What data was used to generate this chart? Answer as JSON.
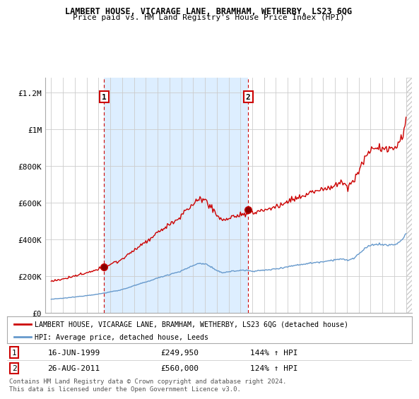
{
  "title": "LAMBERT HOUSE, VICARAGE LANE, BRAMHAM, WETHERBY, LS23 6QG",
  "subtitle": "Price paid vs. HM Land Registry's House Price Index (HPI)",
  "legend_line1": "LAMBERT HOUSE, VICARAGE LANE, BRAMHAM, WETHERBY, LS23 6QG (detached house)",
  "legend_line2": "HPI: Average price, detached house, Leeds",
  "footnote": "Contains HM Land Registry data © Crown copyright and database right 2024.\nThis data is licensed under the Open Government Licence v3.0.",
  "sale1_label": "1",
  "sale1_date": "16-JUN-1999",
  "sale1_price": "£249,950",
  "sale1_hpi": "144% ↑ HPI",
  "sale2_label": "2",
  "sale2_date": "26-AUG-2011",
  "sale2_price": "£560,000",
  "sale2_hpi": "124% ↑ HPI",
  "sale1_x": 1999.46,
  "sale1_y": 249950,
  "sale2_x": 2011.65,
  "sale2_y": 560000,
  "hpi_color": "#6699cc",
  "price_color": "#cc0000",
  "vline_color": "#cc0000",
  "shade_color": "#ddeeff",
  "hatch_color": "#cccccc",
  "background_color": "#ffffff",
  "ylim": [
    0,
    1280000
  ],
  "xlim_start": 1994.5,
  "xlim_end": 2025.5,
  "yticks": [
    0,
    200000,
    400000,
    600000,
    800000,
    1000000,
    1200000
  ],
  "ytick_labels": [
    "£0",
    "£200K",
    "£400K",
    "£600K",
    "£800K",
    "£1M",
    "£1.2M"
  ],
  "xticks": [
    1995,
    1996,
    1997,
    1998,
    1999,
    2000,
    2001,
    2002,
    2003,
    2004,
    2005,
    2006,
    2007,
    2008,
    2009,
    2010,
    2011,
    2012,
    2013,
    2014,
    2015,
    2016,
    2017,
    2018,
    2019,
    2020,
    2021,
    2022,
    2023,
    2024,
    2025
  ]
}
